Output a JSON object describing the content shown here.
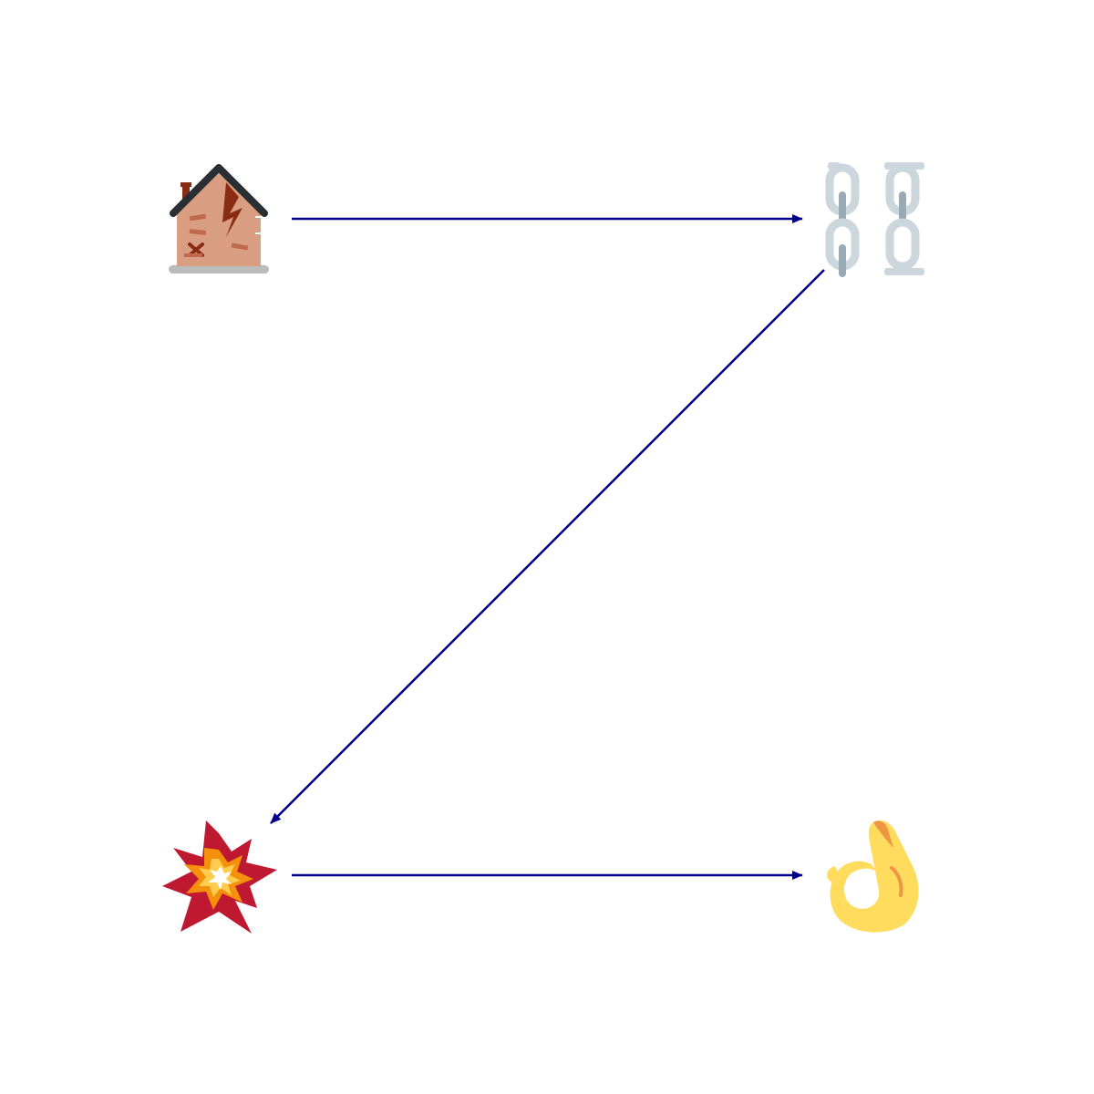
{
  "diagram": {
    "nodes": [
      {
        "id": "derelict-house",
        "icon": "derelict-house-icon"
      },
      {
        "id": "chains",
        "icon": "chains-icon"
      },
      {
        "id": "collision",
        "icon": "collision-icon"
      },
      {
        "id": "ok-hand",
        "icon": "ok-hand-icon"
      }
    ],
    "edges": [
      {
        "from": "derelict-house",
        "to": "chains"
      },
      {
        "from": "chains",
        "to": "collision"
      },
      {
        "from": "collision",
        "to": "ok-hand"
      }
    ]
  },
  "colors": {
    "arrow": "#00008b",
    "house_wall": "#d99e82",
    "house_roof": "#292f33",
    "house_crack": "#8a2b14",
    "ground": "#bbbbbb",
    "chain": "#ccd6dd",
    "chain_shade": "#99aab5",
    "burst_outer": "#be1931",
    "burst_mid": "#f4900c",
    "burst_inner": "#ffcc4d",
    "burst_core": "#ffffff",
    "hand": "#ffdc5d",
    "hand_shade": "#ef9645"
  }
}
